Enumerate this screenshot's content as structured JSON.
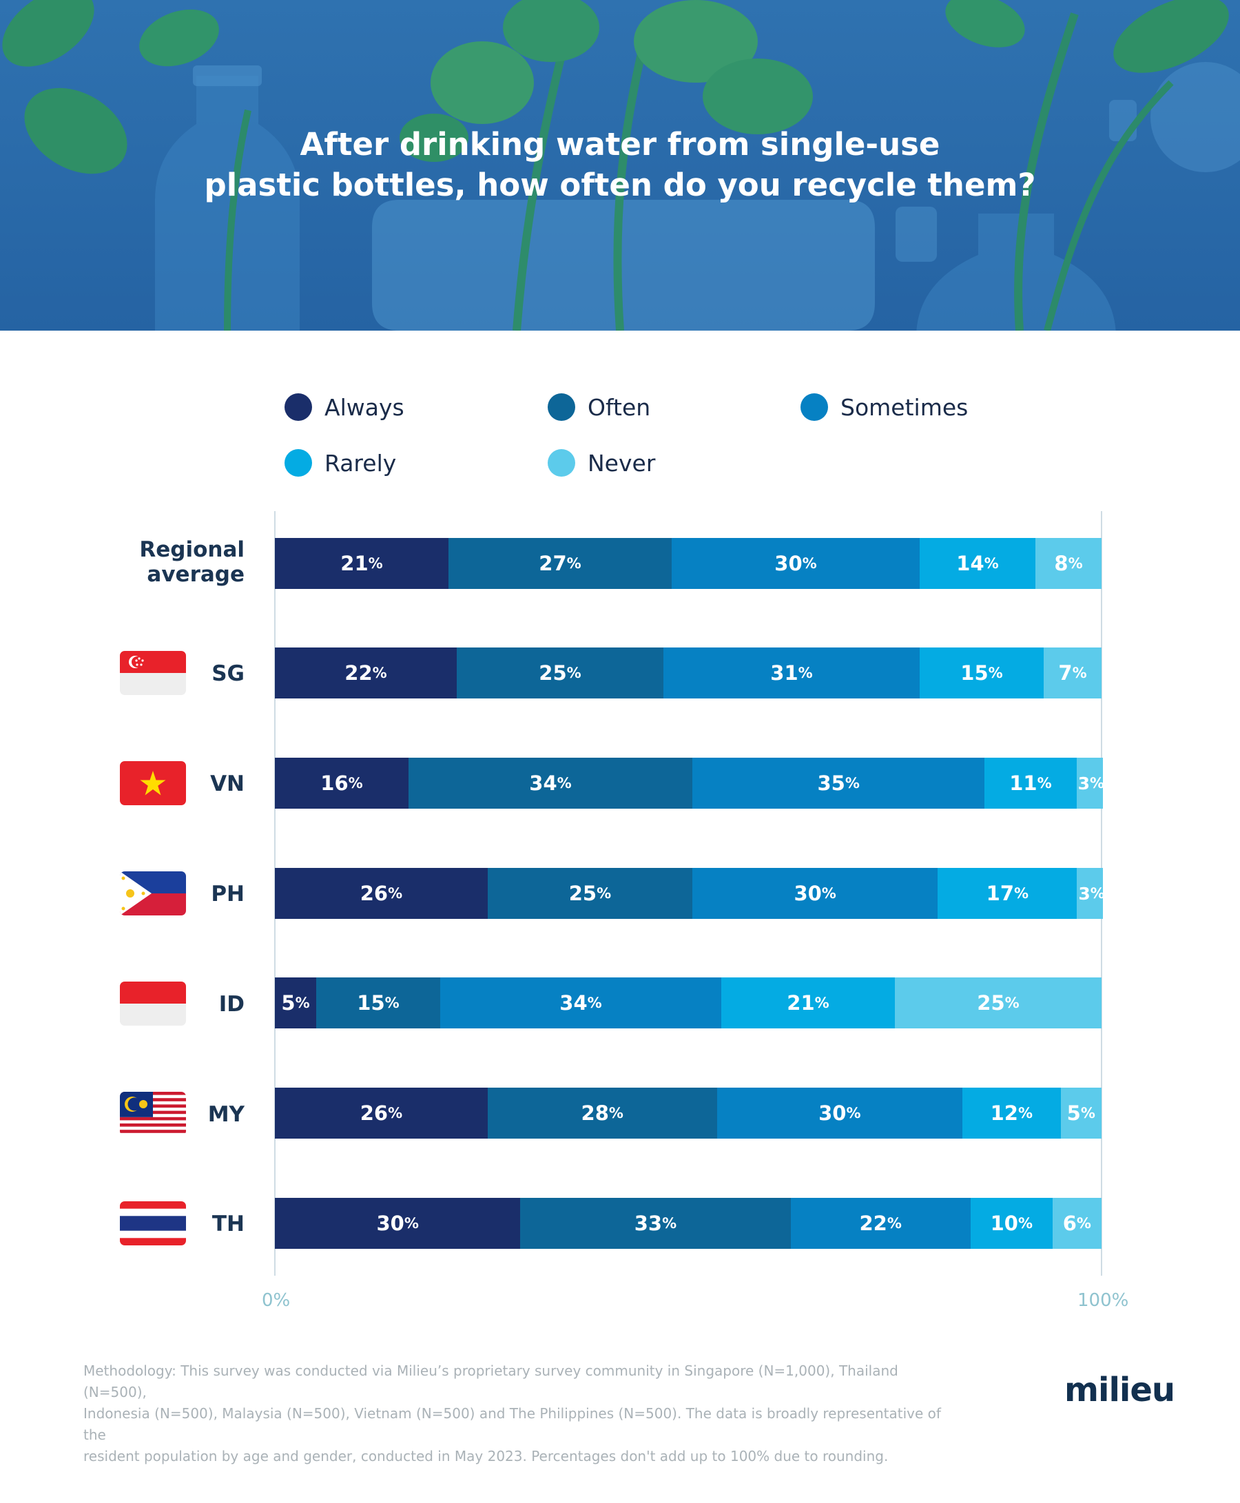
{
  "header": {
    "title_line1": "After drinking water from single-use",
    "title_line2": "plastic bottles, how often do you recycle them?"
  },
  "colors": {
    "Always": "#1a2e6a",
    "Often": "#0d6698",
    "Sometimes": "#0681c3",
    "Rarely": "#04abe3",
    "Never": "#5ccbeb"
  },
  "flags": {
    "SG": "singapore-flag-icon",
    "VN": "vietnam-flag-icon",
    "PH": "philippines-flag-icon",
    "ID": "indonesia-flag-icon",
    "MY": "malaysia-flag-icon",
    "TH": "thailand-flag-icon"
  },
  "chart_data": {
    "type": "bar",
    "orientation": "horizontal",
    "stacked": true,
    "title": "After drinking water from single-use plastic bottles, how often do you recycle them?",
    "xlabel": "",
    "ylabel": "",
    "xlim": [
      0,
      100
    ],
    "legend_position": "top",
    "legend": [
      "Always",
      "Often",
      "Sometimes",
      "Rarely",
      "Never"
    ],
    "categories": [
      "Regional average",
      "SG",
      "VN",
      "PH",
      "ID",
      "MY",
      "TH"
    ],
    "series": [
      {
        "name": "Always",
        "values": [
          21,
          22,
          16,
          26,
          5,
          26,
          30
        ]
      },
      {
        "name": "Often",
        "values": [
          27,
          25,
          34,
          25,
          15,
          28,
          33
        ]
      },
      {
        "name": "Sometimes",
        "values": [
          30,
          31,
          35,
          30,
          34,
          30,
          22
        ]
      },
      {
        "name": "Rarely",
        "values": [
          14,
          15,
          11,
          17,
          21,
          12,
          10
        ]
      },
      {
        "name": "Never",
        "values": [
          8,
          7,
          3,
          3,
          25,
          5,
          6
        ]
      }
    ],
    "x_ticks": [
      "0%",
      "100%"
    ]
  },
  "row_labels": {
    "regional_line1": "Regional",
    "regional_line2": "average"
  },
  "footer": {
    "methodology_line1": "Methodology: This survey was conducted via Milieu’s proprietary survey community in Singapore (N=1,000), Thailand (N=500),",
    "methodology_line2": "Indonesia (N=500), Malaysia (N=500), Vietnam (N=500) and The Philippines (N=500). The data is broadly representative of the",
    "methodology_line3": "resident population by age and gender, conducted in May 2023. Percentages don't add up to 100% due to rounding.",
    "logo": "milieu"
  }
}
